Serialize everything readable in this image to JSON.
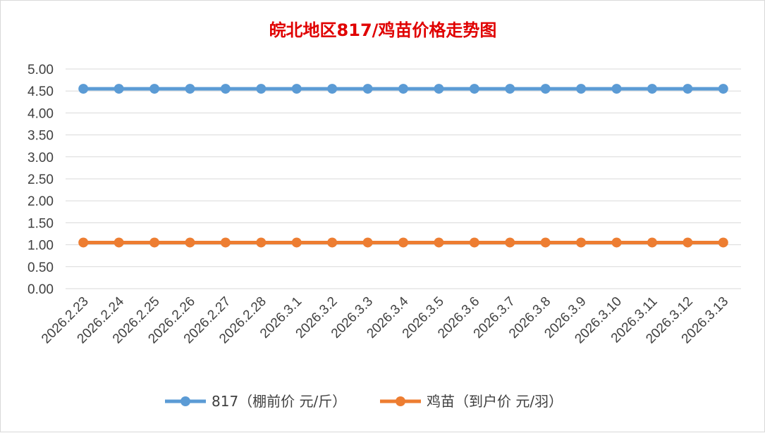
{
  "chart_data": {
    "type": "line",
    "title": "皖北地区817/鸡苗价格走势图",
    "xlabel": "",
    "ylabel": "",
    "categories": [
      "2026.2.23",
      "2026.2.24",
      "2026.2.25",
      "2026.2.26",
      "2026.2.27",
      "2026.2.28",
      "2026.3.1",
      "2026.3.2",
      "2026.3.3",
      "2026.3.4",
      "2026.3.5",
      "2026.3.6",
      "2026.3.7",
      "2026.3.8",
      "2026.3.9",
      "2026.3.10",
      "2026.3.11",
      "2026.3.12",
      "2026.3.13"
    ],
    "y_ticks": [
      "0.00",
      "0.50",
      "1.00",
      "1.50",
      "2.00",
      "2.50",
      "3.00",
      "3.50",
      "4.00",
      "4.50",
      "5.00"
    ],
    "ylim": [
      0,
      5
    ],
    "grid": true,
    "legend_position": "bottom",
    "series": [
      {
        "name": "817（棚前价 元/斤）",
        "color": "#5b9bd5",
        "values": [
          4.55,
          4.55,
          4.55,
          4.55,
          4.55,
          4.55,
          4.55,
          4.55,
          4.55,
          4.55,
          4.55,
          4.55,
          4.55,
          4.55,
          4.55,
          4.55,
          4.55,
          4.55,
          4.55
        ]
      },
      {
        "name": "鸡苗（到户价 元/羽）",
        "color": "#ed7d31",
        "values": [
          1.05,
          1.05,
          1.05,
          1.05,
          1.05,
          1.05,
          1.05,
          1.05,
          1.05,
          1.05,
          1.05,
          1.05,
          1.05,
          1.05,
          1.05,
          1.05,
          1.05,
          1.05,
          1.05
        ]
      }
    ]
  }
}
